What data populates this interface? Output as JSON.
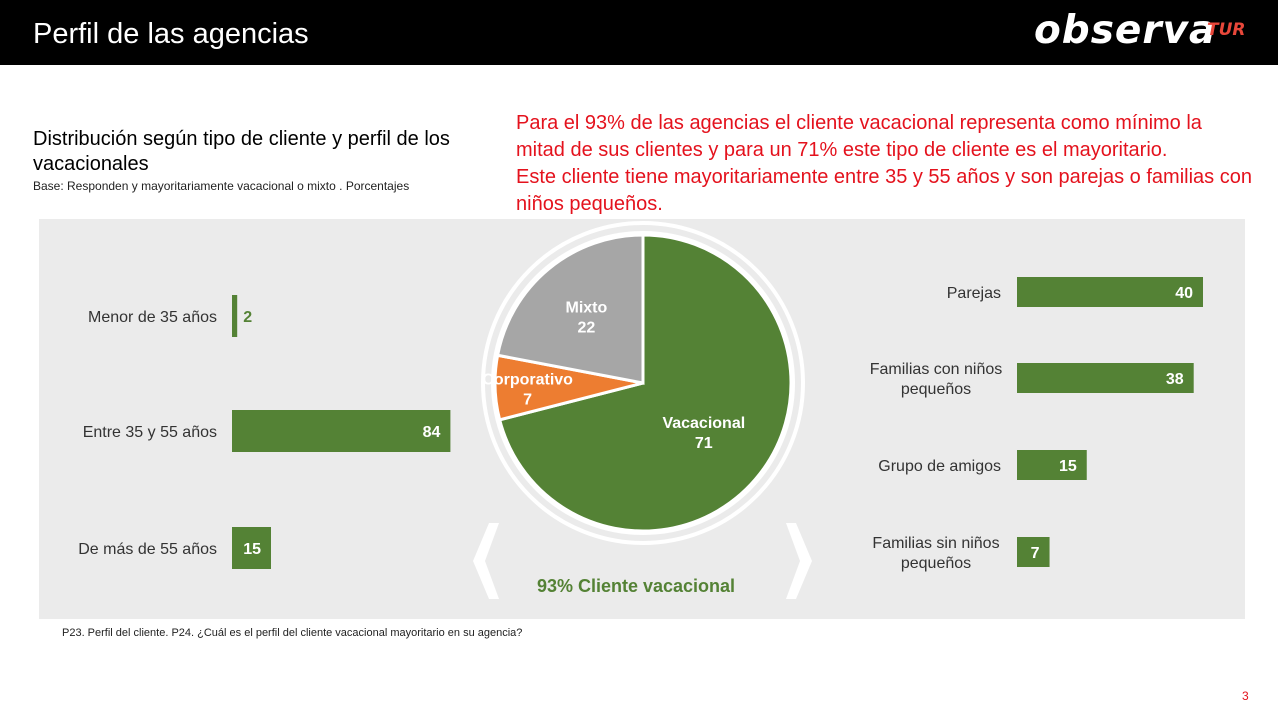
{
  "header": {
    "title": "Perfil de las agencias",
    "logo_main": "observa",
    "logo_sub": "TUR"
  },
  "subtitle": "Distribución según tipo de cliente y perfil de los vacacionales",
  "base_note": "Base: Responden  y mayoritariamente vacacional o mixto . Porcentajes",
  "highlight": {
    "line1": "Para el 93% de las agencias el cliente vacacional representa como mínimo la mitad de sus clientes y para un 71% este tipo de cliente es el mayoritario.",
    "line2": "Este cliente tiene mayoritariamente entre 35 y 55 años y son parejas o familias con niños pequeños."
  },
  "summary_label": "93% Cliente vacacional",
  "footnote": "P23. Perfil del cliente. P24. ¿Cuál es el perfil del cliente vacacional mayoritario en su agencia?",
  "page_number": "3",
  "colors": {
    "green": "#548235",
    "orange": "#ed7d31",
    "gray": "#a6a6a6",
    "red": "#e4121d"
  },
  "chart_data": [
    {
      "type": "bar",
      "orientation": "horizontal",
      "categories": [
        "Menor de 35 años",
        "Entre 35 y 55 años",
        "De más de 55 años"
      ],
      "values": [
        2,
        84,
        15
      ],
      "xlim": [
        0,
        100
      ]
    },
    {
      "type": "pie",
      "labels": [
        "Vacacional",
        "Corporativo",
        "Mixto"
      ],
      "values": [
        71,
        7,
        22
      ],
      "colors": [
        "#548235",
        "#ed7d31",
        "#a6a6a6"
      ]
    },
    {
      "type": "bar",
      "orientation": "horizontal",
      "categories": [
        "Parejas",
        "Familias con niños pequeños",
        "Grupo de amigos",
        "Familias sin niños pequeños"
      ],
      "category_lines": [
        [
          "Parejas"
        ],
        [
          "Familias con niños",
          "pequeños"
        ],
        [
          "Grupo de amigos"
        ],
        [
          "Familias sin niños",
          "pequeños"
        ]
      ],
      "values": [
        40,
        38,
        15,
        7
      ],
      "xlim": [
        0,
        100
      ]
    }
  ]
}
